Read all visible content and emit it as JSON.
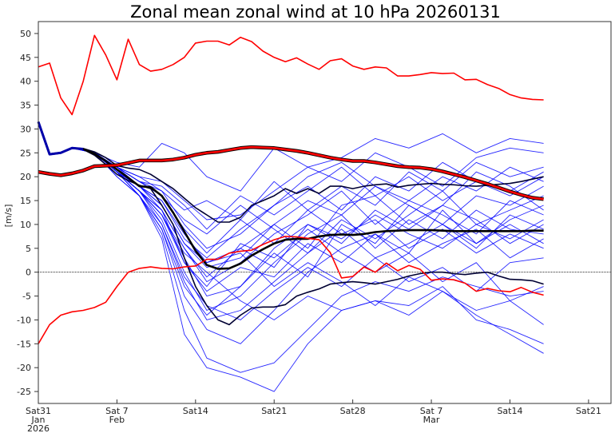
{
  "chart_data": {
    "type": "line",
    "title": "Zonal mean zonal wind at 10 hPa 20260131",
    "ylabel": "[m/s]",
    "xlabel": "",
    "ylim": [
      -27.5,
      52.5
    ],
    "yticks": [
      -25,
      -20,
      -15,
      -10,
      -5,
      0,
      5,
      10,
      15,
      20,
      25,
      30,
      35,
      40,
      45,
      50
    ],
    "xlim": [
      "2026-01-31",
      "2026-03-23"
    ],
    "xticks": [
      {
        "date": "2026-01-31",
        "label": "Sat31",
        "sub": "Jan",
        "sub2": "2026"
      },
      {
        "date": "2026-02-07",
        "label": "Sat 7",
        "sub": "Feb",
        "sub2": ""
      },
      {
        "date": "2026-02-14",
        "label": "Sat14",
        "sub": "",
        "sub2": ""
      },
      {
        "date": "2026-02-21",
        "label": "Sat21",
        "sub": "",
        "sub2": ""
      },
      {
        "date": "2026-02-28",
        "label": "Sat28",
        "sub": "",
        "sub2": ""
      },
      {
        "date": "2026-03-07",
        "label": "Sat 7",
        "sub": "Mar",
        "sub2": ""
      },
      {
        "date": "2026-03-14",
        "label": "Sat14",
        "sub": "",
        "sub2": ""
      },
      {
        "date": "2026-03-21",
        "label": "Sat21",
        "sub": "",
        "sub2": ""
      }
    ],
    "zero_line": true,
    "grid": false,
    "colors": {
      "members": "#0000ff",
      "climatology": "#ff0000",
      "ensemble": "#000000"
    },
    "dates": [
      "2026-01-31",
      "2026-02-01",
      "2026-02-02",
      "2026-02-03",
      "2026-02-04",
      "2026-02-05",
      "2026-02-06",
      "2026-02-07",
      "2026-02-08",
      "2026-02-09",
      "2026-02-10",
      "2026-02-11",
      "2026-02-12",
      "2026-02-13",
      "2026-02-14",
      "2026-02-15",
      "2026-02-16",
      "2026-02-17",
      "2026-02-18",
      "2026-02-19",
      "2026-02-20",
      "2026-02-21",
      "2026-02-22",
      "2026-02-23",
      "2026-02-24",
      "2026-02-25",
      "2026-02-26",
      "2026-02-27",
      "2026-02-28",
      "2026-03-01",
      "2026-03-02",
      "2026-03-03",
      "2026-03-04",
      "2026-03-05",
      "2026-03-06",
      "2026-03-07",
      "2026-03-08",
      "2026-03-09",
      "2026-03-10",
      "2026-03-11",
      "2026-03-12",
      "2026-03-13",
      "2026-03-14",
      "2026-03-15",
      "2026-03-16",
      "2026-03-17"
    ],
    "climatology_max": [
      43,
      43.8,
      36.5,
      33,
      40,
      49.6,
      45.5,
      40.3,
      48.8,
      43.5,
      42.1,
      42.5,
      43.5,
      45,
      48,
      48.4,
      48.4,
      47.6,
      49.2,
      48.3,
      46.3,
      45,
      44.1,
      44.9,
      43.6,
      42.5,
      44.3,
      44.7,
      43.2,
      42.5,
      43,
      42.8,
      41.1,
      41.1,
      41.4,
      41.8,
      41.6,
      41.7,
      40.3,
      40.4,
      39.3,
      38.5,
      37.2,
      36.5,
      36.2,
      36.1
    ],
    "climatology_mean": [
      21,
      20.6,
      20.3,
      20.7,
      21.3,
      22.2,
      22.3,
      22.4,
      22.9,
      23.4,
      23.4,
      23.4,
      23.6,
      24,
      24.6,
      25,
      25.2,
      25.6,
      26,
      26.2,
      26.1,
      26,
      25.7,
      25.4,
      25,
      24.5,
      24,
      23.6,
      23.3,
      23.3,
      23,
      22.6,
      22.2,
      22,
      21.9,
      21.6,
      21.1,
      20.5,
      19.9,
      19.2,
      18.5,
      17.7,
      16.9,
      16.2,
      15.6,
      15.3
    ],
    "climatology_min": [
      -15,
      -11,
      -9,
      -8.3,
      -8,
      -7.4,
      -6.3,
      -3,
      0,
      0.8,
      1.1,
      0.8,
      0.7,
      1.1,
      1.3,
      2.7,
      2.7,
      4,
      4.4,
      4.6,
      5.8,
      6.8,
      7.5,
      7.4,
      7.1,
      6.8,
      4.1,
      -1.2,
      -0.9,
      1.1,
      0,
      1.9,
      0.3,
      1.4,
      0.6,
      -1.7,
      -1.4,
      -1.6,
      -2.3,
      -4,
      -3.4,
      -3.9,
      -4.1,
      -3.2,
      -4.2,
      -4.8
    ],
    "ensemble_mean": [
      31.5,
      24.7,
      25,
      26,
      25.8,
      24.8,
      23.3,
      21.5,
      19.8,
      18,
      17.8,
      16,
      12.5,
      8.5,
      4.5,
      1.5,
      0.7,
      0.8,
      1.8,
      3.5,
      4.8,
      6,
      6.8,
      7,
      7,
      7.5,
      7.8,
      7.9,
      7.8,
      8,
      8.4,
      8.6,
      8.7,
      8.8,
      8.8,
      8.8,
      8.7,
      8.6,
      8.6,
      8.6,
      8.6,
      8.6,
      8.6,
      8.6,
      8.7,
      8.7
    ],
    "ensemble_upper": [
      31.5,
      24.7,
      25,
      26,
      25.9,
      25.2,
      24,
      22.3,
      21.8,
      21.5,
      20.5,
      19,
      17.5,
      15.5,
      13.5,
      12,
      10.5,
      10.5,
      11.5,
      14,
      15,
      16,
      17.5,
      16.5,
      17.5,
      16.5,
      18,
      18,
      17.5,
      18,
      18.3,
      18.5,
      17.8,
      18.2,
      18.4,
      18.6,
      18.4,
      18.3,
      18.1,
      18,
      18.2,
      18.4,
      18.6,
      19,
      19.5,
      20
    ],
    "ensemble_lower": [
      31.5,
      24.7,
      25,
      26,
      25.7,
      24.5,
      22.6,
      20.5,
      19.2,
      18.2,
      17.5,
      14,
      10,
      3,
      -3,
      -7,
      -10,
      -11,
      -9,
      -7.5,
      -7.3,
      -7.3,
      -6.8,
      -5,
      -4.2,
      -3.5,
      -2.5,
      -2.2,
      -2,
      -2.2,
      -2.5,
      -2,
      -1.5,
      -0.8,
      -0.3,
      0,
      0,
      -0.3,
      -0.5,
      -0.2,
      0,
      -0.8,
      -1.5,
      -1.6,
      -1.8,
      -2.5
    ],
    "member_dates": [
      "2026-01-31",
      "2026-02-01",
      "2026-02-02",
      "2026-02-03",
      "2026-02-05",
      "2026-02-07",
      "2026-02-09",
      "2026-02-11",
      "2026-02-13",
      "2026-02-15",
      "2026-02-18",
      "2026-02-21",
      "2026-02-24",
      "2026-02-27",
      "2026-03-02",
      "2026-03-05",
      "2026-03-08",
      "2026-03-11",
      "2026-03-14",
      "2026-03-17"
    ],
    "members": [
      [
        31.5,
        24.7,
        25,
        26,
        25,
        23,
        22,
        27,
        25,
        20,
        17,
        26,
        22,
        24,
        28,
        26,
        29,
        25,
        28,
        27
      ],
      [
        31.5,
        24.7,
        25,
        26,
        25,
        22,
        20,
        19,
        15,
        11,
        12,
        17,
        22,
        19,
        25,
        22,
        18,
        24,
        26,
        25
      ],
      [
        31.5,
        24.7,
        25,
        26,
        25,
        22,
        19,
        17,
        10,
        5,
        8,
        14,
        20,
        23,
        18,
        15,
        20,
        17,
        22,
        19
      ],
      [
        31.5,
        24.7,
        25,
        26,
        25,
        22,
        18,
        15,
        8,
        2,
        5,
        10,
        15,
        12,
        18,
        14,
        10,
        16,
        14,
        18
      ],
      [
        31.5,
        24.7,
        25,
        26,
        25,
        21,
        18,
        13,
        5,
        -2,
        2,
        8,
        12,
        17,
        10,
        15,
        12,
        8,
        15,
        12
      ],
      [
        31.5,
        24.7,
        25,
        26,
        25,
        21,
        17,
        12,
        3,
        -5,
        -3,
        5,
        10,
        6,
        13,
        9,
        14,
        11,
        6,
        10
      ],
      [
        31.5,
        24.7,
        25,
        26,
        25,
        21,
        17,
        11,
        0,
        -8,
        -5,
        2,
        8,
        12,
        5,
        11,
        7,
        13,
        9,
        8
      ],
      [
        31.5,
        24.7,
        25,
        26,
        25,
        21,
        17,
        10,
        -2,
        -10,
        -8,
        -2,
        4,
        9,
        3,
        6,
        10,
        5,
        12,
        9
      ],
      [
        31.5,
        24.7,
        25,
        26,
        25,
        21,
        16,
        9,
        -5,
        -12,
        -15,
        -8,
        0,
        5,
        8,
        2,
        6,
        9,
        3,
        7
      ],
      [
        31.5,
        24.7,
        25,
        26,
        25,
        20,
        16,
        8,
        -8,
        -18,
        -21,
        -19,
        -12,
        -5,
        -2,
        -4,
        -1,
        -3,
        -5,
        -4
      ],
      [
        31.5,
        24.7,
        25,
        26,
        25,
        20,
        16,
        7,
        -13,
        -20,
        -22,
        -25,
        -15,
        -8,
        -6,
        -9,
        -4,
        -8,
        -6,
        -3
      ],
      [
        31.5,
        24.7,
        25,
        26,
        25,
        21,
        17,
        12,
        4,
        0,
        -6,
        -10,
        -5,
        -8,
        -6,
        -7,
        -3,
        -10,
        -12,
        -15
      ],
      [
        31.5,
        24.7,
        25,
        26,
        25,
        21,
        18,
        14,
        6,
        2,
        4,
        -3,
        2,
        -2,
        -7,
        -1,
        -4,
        -9,
        -13,
        -17
      ],
      [
        31.5,
        24.7,
        25,
        26,
        25,
        21,
        17,
        13,
        2,
        -3,
        6,
        3,
        9,
        4,
        0,
        4,
        -2,
        2,
        -6,
        -11
      ],
      [
        31.5,
        24.7,
        25,
        26,
        25,
        22,
        19,
        16,
        9,
        4,
        11,
        6,
        13,
        8,
        11,
        5,
        9,
        4,
        8,
        5
      ],
      [
        31.5,
        24.7,
        25,
        26,
        25,
        22,
        19,
        16,
        11,
        8,
        14,
        9,
        4,
        11,
        7,
        12,
        17,
        10,
        13,
        16
      ],
      [
        31.5,
        24.7,
        25,
        26,
        25,
        21,
        18,
        14,
        6,
        1,
        3,
        10,
        5,
        14,
        16,
        20,
        15,
        19,
        17,
        21
      ],
      [
        31.5,
        24.7,
        25,
        26,
        25,
        21,
        17,
        12,
        2,
        -4,
        1,
        -1,
        6,
        2,
        8,
        4,
        13,
        6,
        11,
        14
      ],
      [
        31.5,
        24.7,
        25,
        26,
        25,
        21,
        16,
        10,
        -1,
        -7,
        -10,
        -4,
        1,
        -3,
        3,
        -2,
        1,
        -4,
        2,
        3
      ],
      [
        31.5,
        24.7,
        25,
        26,
        25,
        22,
        20,
        17,
        13,
        15,
        11,
        19,
        13,
        18,
        14,
        21,
        17,
        23,
        20,
        22
      ],
      [
        31.5,
        24.7,
        25,
        26,
        25,
        21,
        18,
        15,
        7,
        3,
        9,
        14,
        18,
        13,
        20,
        17,
        23,
        19,
        16,
        20
      ],
      [
        31.5,
        24.7,
        25,
        26,
        25,
        21,
        17,
        13,
        5,
        -1,
        5,
        1,
        10,
        7,
        12,
        8,
        5,
        10,
        7,
        11
      ],
      [
        31.5,
        24.7,
        25,
        26,
        25,
        21,
        16,
        9,
        -3,
        -9,
        -3,
        4,
        -1,
        10,
        6,
        14,
        10,
        6,
        10,
        6
      ],
      [
        31.5,
        24.7,
        25,
        26,
        25,
        22,
        19,
        18,
        14,
        9,
        16,
        12,
        17,
        22,
        16,
        10,
        14,
        21,
        18,
        13
      ]
    ]
  }
}
